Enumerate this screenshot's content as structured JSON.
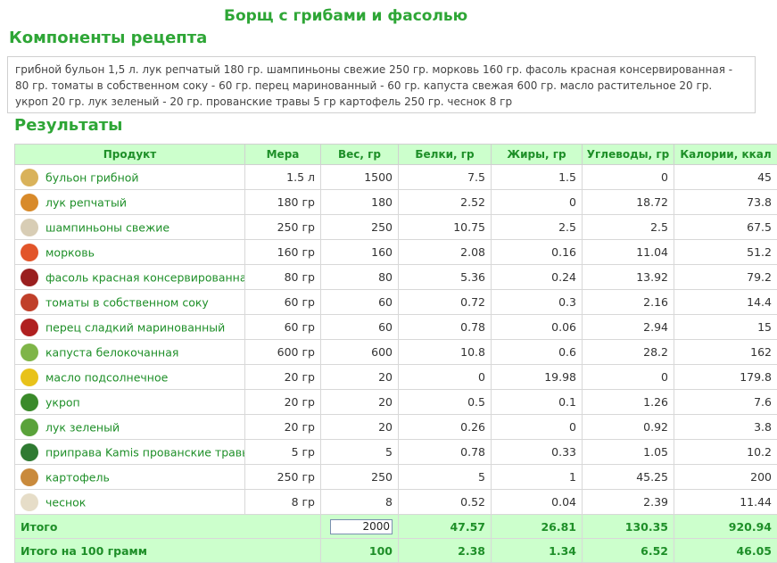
{
  "page": {
    "title": "Борщ с грибами и фасолью",
    "components_heading": "Компоненты рецепта",
    "ingredients_text": "грибной бульон 1,5 л. лук репчатый 180 гр. шампиньоны свежие 250 гр. морковь 160 гр. фасоль красная консервированная - 80 гр. томаты в собственном соку - 60 гр. перец маринованный - 60 гр. капуста свежая 600 гр. масло растительное 20 гр. укроп 20 гр. лук зеленый - 20 гр. прованские травы 5 гр картофель 250 гр. чеснок 8 гр",
    "results_heading": "Результаты"
  },
  "table": {
    "headers": [
      "Продукт",
      "Мера",
      "Вес, гр",
      "Белки, гр",
      "Жиры, гр",
      "Углеводы, гр",
      "Калории, ккал"
    ],
    "rows": [
      {
        "product": "бульон грибной",
        "measure": "1.5 л",
        "weight": "1500",
        "protein": "7.5",
        "fat": "1.5",
        "carbs": "0",
        "kcal": "45",
        "icon": "broth-icon",
        "color": "#d9b25a"
      },
      {
        "product": "лук репчатый",
        "measure": "180 гр",
        "weight": "180",
        "protein": "2.52",
        "fat": "0",
        "carbs": "18.72",
        "kcal": "73.8",
        "icon": "onion-icon",
        "color": "#d88a2a"
      },
      {
        "product": "шампиньоны свежие",
        "measure": "250 гр",
        "weight": "250",
        "protein": "10.75",
        "fat": "2.5",
        "carbs": "2.5",
        "kcal": "67.5",
        "icon": "mushroom-icon",
        "color": "#d8cdb5"
      },
      {
        "product": "морковь",
        "measure": "160 гр",
        "weight": "160",
        "protein": "2.08",
        "fat": "0.16",
        "carbs": "11.04",
        "kcal": "51.2",
        "icon": "carrot-icon",
        "color": "#e2552a"
      },
      {
        "product": "фасоль красная консервированная",
        "measure": "80 гр",
        "weight": "80",
        "protein": "5.36",
        "fat": "0.24",
        "carbs": "13.92",
        "kcal": "79.2",
        "icon": "beans-icon",
        "color": "#9a1f1f"
      },
      {
        "product": "томаты в собственном соку",
        "measure": "60 гр",
        "weight": "60",
        "protein": "0.72",
        "fat": "0.3",
        "carbs": "2.16",
        "kcal": "14.4",
        "icon": "tomato-can-icon",
        "color": "#c0402a"
      },
      {
        "product": "перец сладкий маринованный",
        "measure": "60 гр",
        "weight": "60",
        "protein": "0.78",
        "fat": "0.06",
        "carbs": "2.94",
        "kcal": "15",
        "icon": "pepper-icon",
        "color": "#b02020"
      },
      {
        "product": "капуста белокочанная",
        "measure": "600 гр",
        "weight": "600",
        "protein": "10.8",
        "fat": "0.6",
        "carbs": "28.2",
        "kcal": "162",
        "icon": "cabbage-icon",
        "color": "#7fb548"
      },
      {
        "product": "масло подсолнечное",
        "measure": "20 гр",
        "weight": "20",
        "protein": "0",
        "fat": "19.98",
        "carbs": "0",
        "kcal": "179.8",
        "icon": "sunflower-oil-icon",
        "color": "#e8c21a"
      },
      {
        "product": "укроп",
        "measure": "20 гр",
        "weight": "20",
        "protein": "0.5",
        "fat": "0.1",
        "carbs": "1.26",
        "kcal": "7.6",
        "icon": "dill-icon",
        "color": "#3a8a2a"
      },
      {
        "product": "лук зеленый",
        "measure": "20 гр",
        "weight": "20",
        "protein": "0.26",
        "fat": "0",
        "carbs": "0.92",
        "kcal": "3.8",
        "icon": "green-onion-icon",
        "color": "#5aa23a"
      },
      {
        "product": "приправа Kamis прованские травы",
        "measure": "5 гр",
        "weight": "5",
        "protein": "0.78",
        "fat": "0.33",
        "carbs": "1.05",
        "kcal": "10.2",
        "icon": "herbs-packet-icon",
        "color": "#2f7a32"
      },
      {
        "product": "картофель",
        "measure": "250 гр",
        "weight": "250",
        "protein": "5",
        "fat": "1",
        "carbs": "45.25",
        "kcal": "200",
        "icon": "potato-icon",
        "color": "#c98a3c"
      },
      {
        "product": "чеснок",
        "measure": "8 гр",
        "weight": "8",
        "protein": "0.52",
        "fat": "0.04",
        "carbs": "2.39",
        "kcal": "11.44",
        "icon": "garlic-icon",
        "color": "#e6ddc8"
      }
    ],
    "total": {
      "label": "Итого",
      "weight_value": "2000",
      "protein": "47.57",
      "fat": "26.81",
      "carbs": "130.35",
      "kcal": "920.94"
    },
    "per100": {
      "label": "Итого на 100 грамм",
      "weight": "100",
      "protein": "2.38",
      "fat": "1.34",
      "carbs": "6.52",
      "kcal": "46.05"
    }
  }
}
